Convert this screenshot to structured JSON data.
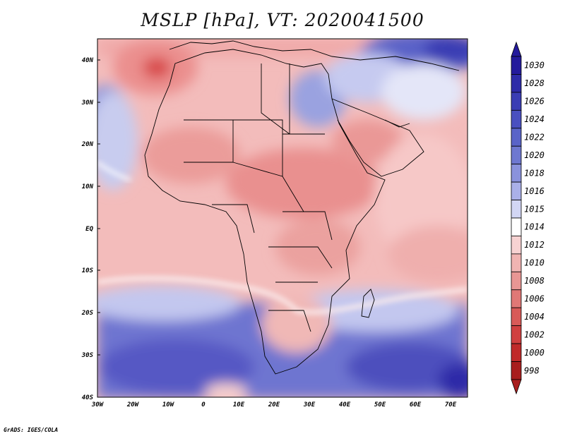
{
  "title": "MSLP [hPa], VT: 2020041500",
  "credit": "GrADS: IGES/COLA",
  "lat_labels": [
    "40N",
    "30N",
    "20N",
    "10N",
    "EQ",
    "10S",
    "20S",
    "30S",
    "40S"
  ],
  "lon_labels": [
    "30W",
    "20W",
    "10W",
    "0",
    "10E",
    "20E",
    "30E",
    "40E",
    "50E",
    "60E",
    "70E"
  ],
  "colorbar": {
    "levels": [
      "1030",
      "1028",
      "1026",
      "1024",
      "1022",
      "1020",
      "1018",
      "1016",
      "1015",
      "1014",
      "1012",
      "1010",
      "1008",
      "1006",
      "1004",
      "1002",
      "1000",
      "998"
    ],
    "colors": [
      "#241a9c",
      "#2e2ba8",
      "#3a3db4",
      "#4a50c0",
      "#5a64c8",
      "#6e78d0",
      "#8a92dc",
      "#aab0e8",
      "#d2d6f4",
      "#ffffff",
      "#f7d2d2",
      "#f0b4b2",
      "#e89694",
      "#e07876",
      "#d85a58",
      "#d04040",
      "#c02a2a",
      "#a81e1e"
    ]
  },
  "field_legend": {
    "ocean_south": "#6e74d0",
    "ocean_high": "#3a3db4",
    "land_low": "#e8908e",
    "tropics": "#f2b6b4",
    "low_center": "#d84a48"
  }
}
